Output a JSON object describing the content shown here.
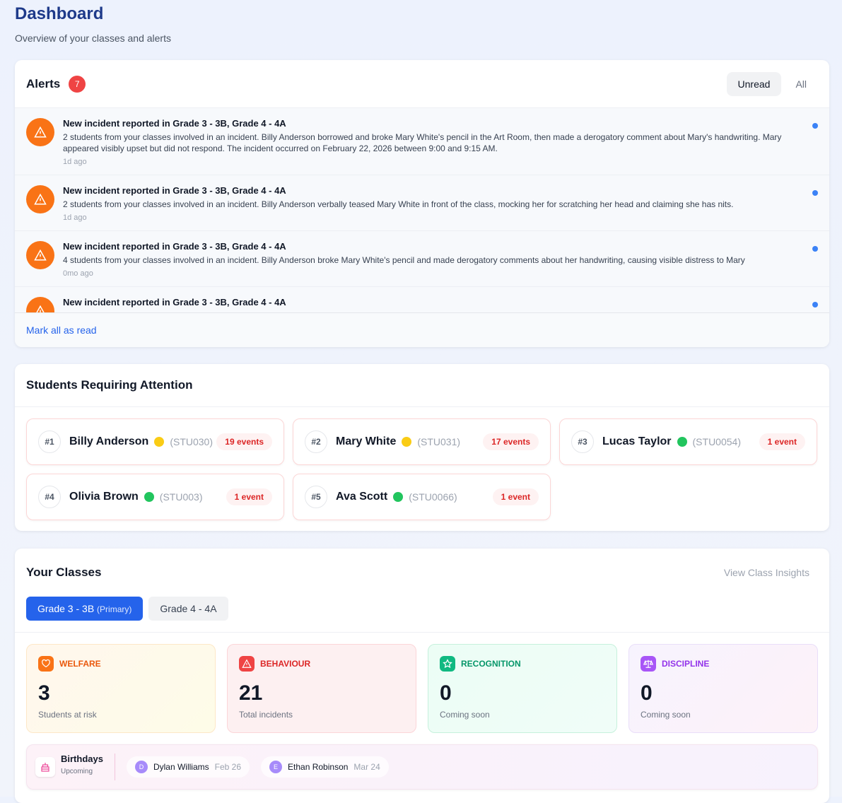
{
  "header": {
    "title": "Dashboard",
    "subtitle": "Overview of your classes and alerts"
  },
  "alerts": {
    "title": "Alerts",
    "count": "7",
    "tabs": [
      "Unread",
      "All"
    ],
    "mark_all": "Mark all as read",
    "items": [
      {
        "title": "New incident reported in Grade 3 - 3B, Grade 4 - 4A",
        "body": "2 students from your classes involved in an incident. Billy Anderson borrowed and broke Mary White's pencil in the Art Room, then made a derogatory comment about Mary's handwriting. Mary appeared visibly upset but did not respond. The incident occurred on February 22, 2026 between 9:00 and 9:15 AM.",
        "time": "1d ago"
      },
      {
        "title": "New incident reported in Grade 3 - 3B, Grade 4 - 4A",
        "body": "2 students from your classes involved in an incident. Billy Anderson verbally teased Mary White in front of the class, mocking her for scratching her head and claiming she has nits.",
        "time": "1d ago"
      },
      {
        "title": "New incident reported in Grade 3 - 3B, Grade 4 - 4A",
        "body": "4 students from your classes involved in an incident. Billy Anderson broke Mary White's pencil and made derogatory comments about her handwriting, causing visible distress to Mary",
        "time": "0mo ago"
      },
      {
        "title": "New incident reported in Grade 3 - 3B, Grade 4 - 4A",
        "body": "",
        "time": ""
      }
    ]
  },
  "students": {
    "title": "Students Requiring Attention",
    "items": [
      {
        "rank": "#1",
        "name": "Billy Anderson",
        "status": "#facc15",
        "id": "(STU030)",
        "events": "19 events"
      },
      {
        "rank": "#2",
        "name": "Mary White",
        "status": "#facc15",
        "id": "(STU031)",
        "events": "17 events"
      },
      {
        "rank": "#3",
        "name": "Lucas Taylor",
        "status": "#22c55e",
        "id": "(STU0054)",
        "events": "1 event"
      },
      {
        "rank": "#4",
        "name": "Olivia Brown",
        "status": "#22c55e",
        "id": "(STU003)",
        "events": "1 event"
      },
      {
        "rank": "#5",
        "name": "Ava Scott",
        "status": "#22c55e",
        "id": "(STU0066)",
        "events": "1 event"
      }
    ]
  },
  "classes": {
    "title": "Your Classes",
    "insights": "View Class Insights",
    "tabs": [
      {
        "label": "Grade 3 - 3B",
        "tag": "(Primary)"
      },
      {
        "label": "Grade 4 - 4A",
        "tag": ""
      }
    ],
    "stats": [
      {
        "label": "WELFARE",
        "value": "3",
        "desc": "Students at risk"
      },
      {
        "label": "BEHAVIOUR",
        "value": "21",
        "desc": "Total incidents"
      },
      {
        "label": "RECOGNITION",
        "value": "0",
        "desc": "Coming soon"
      },
      {
        "label": "DISCIPLINE",
        "value": "0",
        "desc": "Coming soon"
      }
    ],
    "birthdays": {
      "title": "Birthdays",
      "subtitle": "Upcoming",
      "items": [
        {
          "initial": "D",
          "name": "Dylan Williams",
          "date": "Feb 26"
        },
        {
          "initial": "E",
          "name": "Ethan Robinson",
          "date": "Mar 24"
        }
      ]
    }
  }
}
